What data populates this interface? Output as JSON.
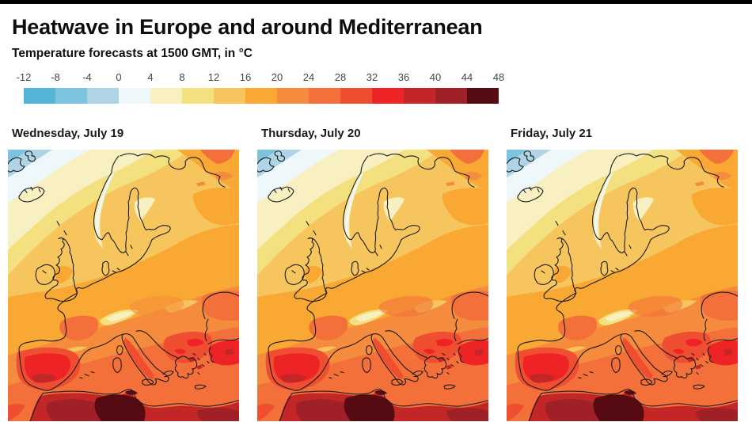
{
  "page": {
    "top_bar_color": "#000000",
    "background": "#ffffff"
  },
  "header": {
    "title": "Heatwave in Europe and around Mediterranean",
    "subtitle": "Temperature forecasts at 1500 GMT, in °C"
  },
  "legend": {
    "tick_labels": [
      "-12",
      "-8",
      "-4",
      "0",
      "4",
      "8",
      "12",
      "16",
      "20",
      "24",
      "28",
      "32",
      "36",
      "40",
      "44",
      "48"
    ],
    "unit": "°C",
    "colors": [
      "#55b5d6",
      "#7cc4de",
      "#aed4e6",
      "#eef7f9",
      "#f9f0c2",
      "#f3e07e",
      "#f7c55e",
      "#f9a833",
      "#f58b3d",
      "#f3703a",
      "#ef4f30",
      "#ee2326",
      "#c22626",
      "#9f2026",
      "#560a12"
    ]
  },
  "map": {
    "coastline_color": "#1c1c1c"
  },
  "panels": [
    {
      "label": "Wednesday, July 19",
      "accent_color": "#f58b3d"
    },
    {
      "label": "Thursday, July 20",
      "accent_color": "#f3703a"
    },
    {
      "label": "Friday, July 21",
      "accent_color": "#f3703a"
    }
  ]
}
